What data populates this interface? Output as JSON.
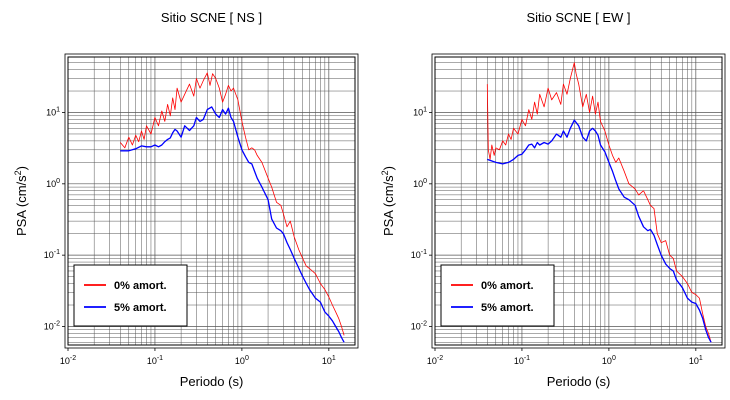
{
  "chart_data": [
    {
      "type": "line",
      "title": "Sitio SCNE [ NS ]",
      "xlabel": "Periodo (s)",
      "ylabel_main": "PSA (cm/s",
      "ylabel_exp": "2",
      "ylabel_close": ")",
      "xscale": "log",
      "yscale": "log",
      "xlim": [
        0.01,
        20
      ],
      "ylim": [
        0.0055,
        60
      ],
      "grid": true,
      "legend_position": "bottom-left",
      "x_ticks": [
        {
          "base": "10",
          "exp": "-2",
          "value": 0.01
        },
        {
          "base": "10",
          "exp": "-1",
          "value": 0.1
        },
        {
          "base": "10",
          "exp": "0",
          "value": 1
        },
        {
          "base": "10",
          "exp": "1",
          "value": 10
        }
      ],
      "y_ticks": [
        {
          "base": "10",
          "exp": "-2",
          "value": 0.01
        },
        {
          "base": "10",
          "exp": "-1",
          "value": 0.1
        },
        {
          "base": "10",
          "exp": "0",
          "value": 1
        },
        {
          "base": "10",
          "exp": "1",
          "value": 10
        }
      ],
      "series": [
        {
          "name": "0% amort.",
          "color": "#ff0000",
          "x": [
            0.04,
            0.045,
            0.05,
            0.055,
            0.06,
            0.065,
            0.07,
            0.075,
            0.08,
            0.09,
            0.1,
            0.11,
            0.12,
            0.13,
            0.14,
            0.15,
            0.16,
            0.17,
            0.18,
            0.2,
            0.22,
            0.25,
            0.28,
            0.3,
            0.33,
            0.36,
            0.4,
            0.43,
            0.46,
            0.5,
            0.55,
            0.6,
            0.65,
            0.7,
            0.75,
            0.8,
            0.9,
            1.0,
            1.1,
            1.2,
            1.3,
            1.4,
            1.5,
            1.7,
            2.0,
            2.2,
            2.5,
            2.8,
            3.0,
            3.3,
            3.6,
            4.0,
            4.5,
            5.0,
            5.5,
            6.0,
            7.0,
            8.0,
            9.0,
            10,
            11,
            12,
            13,
            14,
            15
          ],
          "y": [
            3.8,
            3.2,
            4.5,
            3.5,
            4.8,
            3.9,
            5.5,
            4.2,
            6.5,
            5.0,
            8.5,
            6.5,
            10.5,
            7.5,
            13,
            9.0,
            16,
            11,
            22,
            14,
            18,
            25,
            17,
            30,
            22,
            28,
            36,
            24,
            35,
            30,
            22,
            14,
            18,
            24,
            20,
            22,
            15,
            7.5,
            4.5,
            3.0,
            3.2,
            3.0,
            2.5,
            2.0,
            1.2,
            0.9,
            0.55,
            0.5,
            0.38,
            0.25,
            0.3,
            0.18,
            0.12,
            0.09,
            0.07,
            0.065,
            0.055,
            0.04,
            0.033,
            0.026,
            0.02,
            0.016,
            0.013,
            0.01,
            0.0075
          ]
        },
        {
          "name": "5% amort.",
          "color": "#0000ff",
          "x": [
            0.04,
            0.05,
            0.06,
            0.07,
            0.08,
            0.09,
            0.1,
            0.11,
            0.12,
            0.13,
            0.14,
            0.15,
            0.16,
            0.17,
            0.18,
            0.2,
            0.22,
            0.25,
            0.28,
            0.3,
            0.33,
            0.36,
            0.4,
            0.45,
            0.5,
            0.55,
            0.6,
            0.65,
            0.7,
            0.75,
            0.8,
            0.9,
            1.0,
            1.1,
            1.2,
            1.3,
            1.5,
            1.7,
            2.0,
            2.2,
            2.5,
            2.8,
            3.0,
            3.3,
            3.6,
            4.0,
            4.5,
            5.0,
            5.5,
            6.0,
            7.0,
            8.0,
            9.0,
            10,
            11,
            12,
            13,
            14,
            15
          ],
          "y": [
            2.9,
            2.9,
            3.1,
            3.4,
            3.3,
            3.3,
            3.5,
            3.3,
            3.5,
            3.9,
            4.2,
            4.4,
            5.2,
            5.8,
            5.5,
            4.5,
            6.5,
            5.6,
            6.5,
            8.5,
            7.5,
            8.0,
            11,
            12,
            9.5,
            8.5,
            11,
            9.5,
            11.5,
            8.5,
            7.5,
            4.5,
            3.0,
            2.4,
            2.0,
            1.9,
            1.2,
            0.9,
            0.6,
            0.32,
            0.24,
            0.22,
            0.2,
            0.15,
            0.12,
            0.09,
            0.066,
            0.05,
            0.04,
            0.033,
            0.025,
            0.022,
            0.016,
            0.014,
            0.012,
            0.01,
            0.0085,
            0.007,
            0.006
          ]
        }
      ]
    },
    {
      "type": "line",
      "title": "Sitio SCNE [ EW ]",
      "xlabel": "Periodo (s)",
      "ylabel_main": "PSA (cm/s",
      "ylabel_exp": "2",
      "ylabel_close": ")",
      "xscale": "log",
      "yscale": "log",
      "xlim": [
        0.01,
        20
      ],
      "ylim": [
        0.0055,
        60
      ],
      "grid": true,
      "legend_position": "bottom-left",
      "x_ticks": [
        {
          "base": "10",
          "exp": "-2",
          "value": 0.01
        },
        {
          "base": "10",
          "exp": "-1",
          "value": 0.1
        },
        {
          "base": "10",
          "exp": "0",
          "value": 1
        },
        {
          "base": "10",
          "exp": "1",
          "value": 10
        }
      ],
      "y_ticks": [
        {
          "base": "10",
          "exp": "-2",
          "value": 0.01
        },
        {
          "base": "10",
          "exp": "-1",
          "value": 0.1
        },
        {
          "base": "10",
          "exp": "0",
          "value": 1
        },
        {
          "base": "10",
          "exp": "1",
          "value": 10
        }
      ],
      "series": [
        {
          "name": "0% amort.",
          "color": "#ff0000",
          "x": [
            0.04,
            0.041,
            0.043,
            0.045,
            0.048,
            0.05,
            0.055,
            0.06,
            0.065,
            0.07,
            0.075,
            0.08,
            0.09,
            0.1,
            0.11,
            0.12,
            0.13,
            0.14,
            0.15,
            0.16,
            0.18,
            0.2,
            0.22,
            0.25,
            0.28,
            0.3,
            0.33,
            0.36,
            0.4,
            0.42,
            0.45,
            0.5,
            0.55,
            0.6,
            0.65,
            0.7,
            0.75,
            0.8,
            0.9,
            1.0,
            1.1,
            1.2,
            1.3,
            1.5,
            1.7,
            2.0,
            2.2,
            2.5,
            2.8,
            3.0,
            3.3,
            3.6,
            4.0,
            4.5,
            5.0,
            5.5,
            6.0,
            7.0,
            8.0,
            9.0,
            10,
            11,
            12,
            13,
            14,
            15
          ],
          "y": [
            25,
            3.0,
            2.2,
            3.5,
            2.5,
            3.2,
            3.0,
            4.0,
            3.5,
            5.0,
            4.2,
            6.0,
            5.0,
            8.0,
            6.5,
            11,
            8.0,
            14,
            9.5,
            18,
            12,
            22,
            15,
            19,
            13,
            25,
            18,
            30,
            50,
            35,
            25,
            12,
            18,
            10,
            17,
            9.5,
            14,
            7.5,
            5.5,
            3.5,
            2.5,
            2.0,
            2.3,
            1.5,
            1.0,
            0.85,
            0.7,
            0.8,
            0.6,
            0.5,
            0.45,
            0.2,
            0.15,
            0.16,
            0.1,
            0.09,
            0.06,
            0.05,
            0.04,
            0.03,
            0.028,
            0.025,
            0.015,
            0.01,
            0.008,
            0.006
          ]
        },
        {
          "name": "5% amort.",
          "color": "#0000ff",
          "x": [
            0.04,
            0.05,
            0.06,
            0.07,
            0.08,
            0.09,
            0.1,
            0.11,
            0.12,
            0.13,
            0.14,
            0.15,
            0.16,
            0.18,
            0.2,
            0.22,
            0.25,
            0.28,
            0.3,
            0.33,
            0.36,
            0.4,
            0.45,
            0.5,
            0.55,
            0.6,
            0.65,
            0.7,
            0.75,
            0.8,
            0.9,
            1.0,
            1.1,
            1.2,
            1.3,
            1.5,
            1.7,
            2.0,
            2.2,
            2.5,
            2.8,
            3.0,
            3.3,
            3.6,
            4.0,
            4.5,
            5.0,
            5.5,
            6.0,
            7.0,
            8.0,
            9.0,
            10,
            11,
            12,
            13,
            14,
            15
          ],
          "y": [
            2.2,
            2.0,
            1.9,
            2.0,
            2.2,
            2.5,
            2.6,
            3.0,
            3.5,
            3.6,
            3.2,
            3.8,
            3.5,
            3.8,
            3.6,
            4.0,
            5.0,
            4.5,
            5.5,
            4.5,
            6.0,
            7.8,
            6.5,
            4.5,
            4.0,
            5.5,
            6.0,
            5.5,
            4.8,
            3.5,
            2.8,
            2.0,
            1.5,
            1.1,
            0.85,
            0.65,
            0.6,
            0.5,
            0.35,
            0.25,
            0.22,
            0.23,
            0.19,
            0.14,
            0.1,
            0.075,
            0.065,
            0.06,
            0.045,
            0.035,
            0.025,
            0.022,
            0.021,
            0.017,
            0.013,
            0.009,
            0.007,
            0.006
          ]
        }
      ]
    }
  ]
}
